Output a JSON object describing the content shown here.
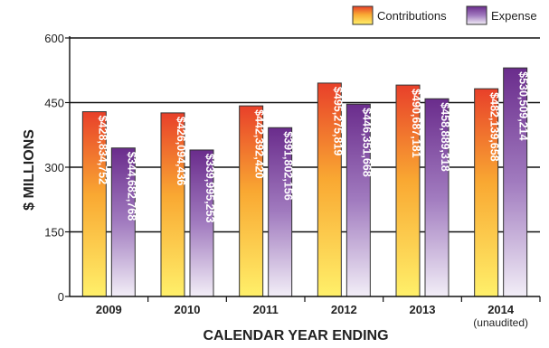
{
  "chart_data": {
    "type": "bar",
    "title": "",
    "xlabel": "CALENDAR YEAR ENDING",
    "ylabel": "$ MILLIONS",
    "ylim": [
      0,
      600
    ],
    "yticks": [
      "0",
      "150",
      "300",
      "450",
      "600"
    ],
    "ytick_values": [
      0,
      150,
      300,
      450,
      600
    ],
    "grid": true,
    "legend_position": "top-right",
    "categories": [
      "2009",
      "2010",
      "2011",
      "2012",
      "2013",
      "2014"
    ],
    "category_notes": [
      "",
      "",
      "",
      "",
      "",
      "(unaudited)"
    ],
    "series": [
      {
        "name": "Contributions",
        "color_top": "#e8402a",
        "color_bottom": "#fff06a",
        "values": [
          428.834752,
          426.094436,
          442.39242,
          495.275819,
          490.687181,
          482.139658
        ],
        "labels": [
          "$428,834,752",
          "$426,094,436",
          "$442,392,420",
          "$495,275,819",
          "$490,687,181",
          "$482,139,658"
        ]
      },
      {
        "name": "Expense",
        "color_top": "#6a2c8c",
        "color_bottom": "#f2eef7",
        "values": [
          344.682768,
          339.995253,
          391.802156,
          446.351668,
          458.889318,
          530.509214
        ],
        "labels": [
          "$344,682,768",
          "$339,995,253",
          "$391,802,156",
          "$446,351,668",
          "$458,889,318",
          "$530,509,214"
        ]
      }
    ]
  }
}
